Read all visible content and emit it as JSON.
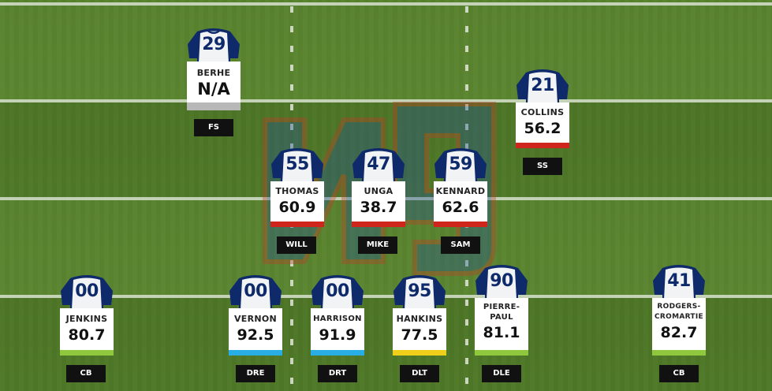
{
  "colors": {
    "jersey_body": "#f2f3f5",
    "jersey_sleeve": "#0e2a6b",
    "number": "#0e2a6b",
    "bar_gray": "#b8b8b8",
    "bar_red": "#d0251c",
    "bar_green": "#8fc83c",
    "bar_blue": "#28aee4",
    "bar_yellow": "#f0cf1a"
  },
  "players": [
    {
      "id": "berhe",
      "number": "29",
      "name_line1": "BERHE",
      "name_line2": "",
      "grade": "N/A",
      "position": "FS",
      "bar": "gray"
    },
    {
      "id": "collins",
      "number": "21",
      "name_line1": "COLLINS",
      "name_line2": "",
      "grade": "56.2",
      "position": "SS",
      "bar": "red"
    },
    {
      "id": "thomas",
      "number": "55",
      "name_line1": "THOMAS",
      "name_line2": "",
      "grade": "60.9",
      "position": "WILL",
      "bar": "red"
    },
    {
      "id": "unga",
      "number": "47",
      "name_line1": "UNGA",
      "name_line2": "",
      "grade": "38.7",
      "position": "MIKE",
      "bar": "red"
    },
    {
      "id": "kennard",
      "number": "59",
      "name_line1": "KENNARD",
      "name_line2": "",
      "grade": "62.6",
      "position": "SAM",
      "bar": "red"
    },
    {
      "id": "jenkins",
      "number": "00",
      "name_line1": "JENKINS",
      "name_line2": "",
      "grade": "80.7",
      "position": "CB",
      "bar": "green"
    },
    {
      "id": "vernon",
      "number": "00",
      "name_line1": "VERNON",
      "name_line2": "",
      "grade": "92.5",
      "position": "DRE",
      "bar": "blue"
    },
    {
      "id": "harrison",
      "number": "00",
      "name_line1": "HARRISON",
      "name_line2": "",
      "grade": "91.9",
      "position": "DRT",
      "bar": "blue"
    },
    {
      "id": "hankins",
      "number": "95",
      "name_line1": "HANKINS",
      "name_line2": "",
      "grade": "77.5",
      "position": "DLT",
      "bar": "yellow"
    },
    {
      "id": "pierre-paul",
      "number": "90",
      "name_line1": "PIERRE-",
      "name_line2": "PAUL",
      "grade": "81.1",
      "position": "DLE",
      "bar": "green"
    },
    {
      "id": "rodgers-cromartie",
      "number": "41",
      "name_line1": "RODGERS-",
      "name_line2": "CROMARTIE",
      "grade": "82.7",
      "position": "CB",
      "bar": "green"
    }
  ]
}
